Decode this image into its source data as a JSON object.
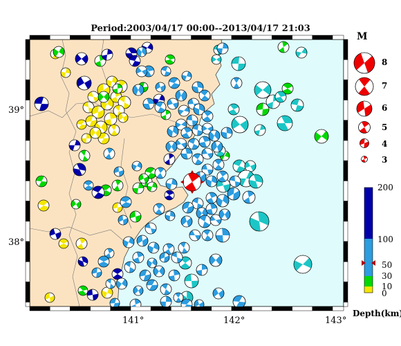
{
  "title": "Period:2003/04/17 00:00--2013/04/17 21:03",
  "legend": {
    "magnitude_title": "M",
    "magnitudes": [
      "8",
      "7",
      "6",
      "5",
      "4",
      "3"
    ],
    "depth_title": "Depth(km)",
    "depth_ticks": [
      "200",
      "100",
      "50",
      "30",
      "10",
      "0"
    ],
    "depth_colors": {
      "0-10": "#f5e600",
      "10-30": "#00d800",
      "30-100": "#2c9de0",
      "100-200": "#0000aa"
    },
    "highlight_color": "#ee0000"
  },
  "axes": {
    "lat_labels": [
      "39°",
      "38°"
    ],
    "lon_labels": [
      "141°",
      "142°",
      "143°"
    ]
  },
  "colors": {
    "land": "#fbe3c2",
    "sea": "#e0fbfb",
    "frame": "#000000"
  },
  "main_event": {
    "lon": 141.62,
    "lat": 38.45,
    "depth_marker": 50,
    "color": "#ee0000"
  }
}
